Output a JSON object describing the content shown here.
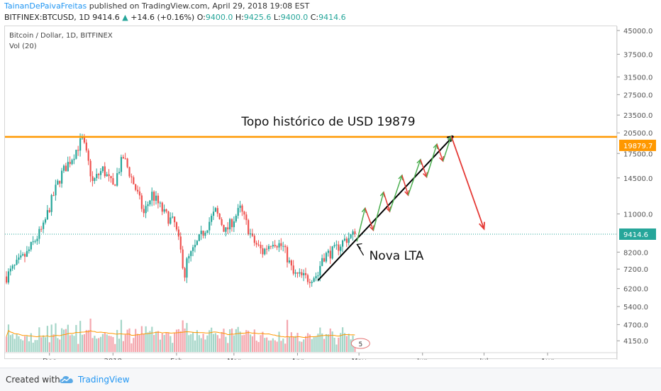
{
  "header": {
    "author": "TainanDePaivaFreitas",
    "published": "published on TradingView.com, April 29, 2018 19:08 EST",
    "symbol": "BITFINEX:BTCUSD, 1D",
    "last": "9414.6",
    "up_arrow": "▲",
    "change": "+14.6 (+0.16%)",
    "o_label": "O:",
    "o_val": "9400.0",
    "h_label": "H:",
    "h_val": "9425.6",
    "l_label": "L:",
    "l_val": "9400.0",
    "c_label": "C:",
    "c_val": "9414.6"
  },
  "footer": {
    "created_with": "Created with",
    "brand": "TradingView",
    "logo_icon": "tradingview-cloud-icon"
  },
  "colors": {
    "up": "#26a69a",
    "down": "#ef5350",
    "vol_up": "#a5d6c8",
    "vol_down": "#f4a7ae",
    "resistance": "#ff9800",
    "price_line": "#26a69a",
    "ma": "#ff9800",
    "arrow_up": "#4caf50",
    "arrow_down": "#e53935",
    "axis_text": "#555555"
  },
  "chart_data": {
    "type": "candlestick",
    "title": "Bitcoin / Dollar, 1D, BITFINEX",
    "volume_label": "Vol (20)",
    "y_scale": "log",
    "y_ticks": [
      45000,
      37500,
      31500,
      27500,
      23500,
      20500,
      17500,
      14500,
      11000,
      8200,
      7200,
      6200,
      5400,
      4700,
      4150
    ],
    "y_tick_labels": [
      "45000.0",
      "37500.0",
      "31500.0",
      "27500.0",
      "23500.0",
      "20500.0",
      "17500.0",
      "14500.0",
      "11000.0",
      "8200.0",
      "7200.0",
      "6200.0",
      "5400.0",
      "4700.0",
      "4150.0"
    ],
    "x_tick_labels": [
      "Dec",
      "2018",
      "Feb",
      "Mar",
      "Apr",
      "May",
      "Jun",
      "Jul",
      "Aug"
    ],
    "x_tick_dates": [
      "2017-12-01",
      "2018-01-01",
      "2018-02-01",
      "2018-03-01",
      "2018-04-01",
      "2018-05-01",
      "2018-06-01",
      "2018-07-01",
      "2018-08-01"
    ],
    "x_range": [
      "2017-11-10",
      "2018-08-29"
    ],
    "last_price": 9414.6,
    "last_price_label": "9414.6",
    "resistance_level": 19879.7,
    "resistance_label": "19879.7",
    "daily_close_anchors": [
      [
        "2017-11-10",
        6800
      ],
      [
        "2017-11-20",
        8100
      ],
      [
        "2017-11-28",
        9900
      ],
      [
        "2017-12-07",
        15000
      ],
      [
        "2017-12-12",
        17000
      ],
      [
        "2017-12-17",
        19500
      ],
      [
        "2017-12-22",
        14000
      ],
      [
        "2017-12-27",
        15500
      ],
      [
        "2018-01-01",
        13500
      ],
      [
        "2018-01-06",
        17000
      ],
      [
        "2018-01-10",
        14500
      ],
      [
        "2018-01-16",
        11000
      ],
      [
        "2018-01-20",
        12800
      ],
      [
        "2018-01-26",
        11000
      ],
      [
        "2018-01-31",
        10200
      ],
      [
        "2018-02-05",
        6900
      ],
      [
        "2018-02-06",
        7600
      ],
      [
        "2018-02-10",
        8500
      ],
      [
        "2018-02-16",
        10100
      ],
      [
        "2018-02-20",
        11200
      ],
      [
        "2018-02-25",
        9600
      ],
      [
        "2018-03-04",
        11400
      ],
      [
        "2018-03-10",
        9000
      ],
      [
        "2018-03-15",
        8200
      ],
      [
        "2018-03-20",
        9000
      ],
      [
        "2018-03-25",
        8500
      ],
      [
        "2018-03-30",
        6900
      ],
      [
        "2018-04-06",
        6700
      ],
      [
        "2018-04-11",
        6900
      ],
      [
        "2018-04-13",
        7900
      ],
      [
        "2018-04-19",
        8300
      ],
      [
        "2018-04-24",
        9000
      ],
      [
        "2018-04-29",
        9414.6
      ]
    ],
    "annotations": {
      "ath_text": "Topo histórico de USD 19879",
      "lta_text": "Nova LTA",
      "trendline": [
        [
          "2018-04-11",
          6600
        ],
        [
          "2018-06-16",
          20000
        ]
      ],
      "zigzag": [
        [
          "2018-04-30",
          8900
        ],
        [
          "2018-05-04",
          11500
        ],
        [
          "2018-05-08",
          9700
        ],
        [
          "2018-05-13",
          13000
        ],
        [
          "2018-05-16",
          11200
        ],
        [
          "2018-05-22",
          14800
        ],
        [
          "2018-05-25",
          12700
        ],
        [
          "2018-05-31",
          16700
        ],
        [
          "2018-06-03",
          14600
        ],
        [
          "2018-06-08",
          18800
        ],
        [
          "2018-06-11",
          16500
        ],
        [
          "2018-06-15",
          20000
        ]
      ],
      "drop_arrow": [
        [
          "2018-06-15",
          20000
        ],
        [
          "2018-07-01",
          9800
        ]
      ],
      "events_badge": "5"
    }
  }
}
